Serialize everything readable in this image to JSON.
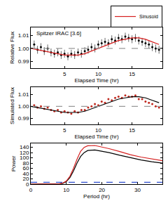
{
  "chart_data": [
    {
      "type": "scatter",
      "annotation": "Spitzer IRAC [3.6]",
      "x_label": "Elapsed Time (hr)",
      "y_label": "Relative Flux",
      "xlim": [
        0,
        19.5
      ],
      "xticks": [
        5,
        10,
        15
      ],
      "ylim": [
        0.985,
        1.016
      ],
      "yticks": [
        0.99,
        {
          "value": 1,
          "label": "1.00"
        },
        1.01
      ],
      "legend": "top right",
      "grid": false,
      "series": [
        {
          "type": "scatter",
          "color": "#000000",
          "marker": "circle",
          "x": [
            0.5,
            1,
            1.5,
            2,
            2.5,
            3,
            3.5,
            4,
            4.5,
            5,
            5.5,
            6,
            6.5,
            7,
            7.5,
            8,
            8.5,
            9,
            9.5,
            10,
            10.5,
            11,
            11.5,
            12,
            12.5,
            13,
            13.5,
            14,
            14.5,
            15,
            15.5,
            16,
            16.5,
            17,
            17.5,
            18,
            18.5,
            19
          ],
          "values": [
            1.003,
            0.999,
            1.001,
            0.998,
            1.0,
            0.997,
            0.996,
            0.997,
            0.995,
            0.996,
            0.994,
            0.996,
            0.995,
            0.997,
            0.996,
            0.998,
            0.999,
            1.001,
            1.0,
            1.003,
            1.004,
            1.005,
            1.004,
            1.007,
            1.006,
            1.008,
            1.007,
            1.009,
            1.008,
            1.007,
            1.008,
            1.006,
            1.005,
            1.004,
            1.003,
            1.001,
            1.0,
            0.999
          ],
          "error": [
            0.003,
            0.003,
            0.003,
            0.003,
            0.003,
            0.003,
            0.003,
            0.003,
            0.003,
            0.003,
            0.003,
            0.003,
            0.003,
            0.003,
            0.003,
            0.003,
            0.003,
            0.003,
            0.003,
            0.003,
            0.003,
            0.003,
            0.003,
            0.003,
            0.003,
            0.003,
            0.003,
            0.003,
            0.003,
            0.003,
            0.003,
            0.003,
            0.003,
            0.003,
            0.003,
            0.003,
            0.003,
            0.003
          ]
        },
        {
          "name": "Sinusoid",
          "type": "line",
          "color": "#d62020",
          "line_style": "solid",
          "x": [
            0,
            1,
            2,
            3,
            4,
            5,
            6,
            7,
            8,
            9,
            10,
            11,
            12,
            13,
            14,
            15,
            16,
            17,
            18,
            19
          ],
          "values": [
            1.0,
            0.999,
            0.998,
            0.997,
            0.996,
            0.995,
            0.995,
            0.995,
            0.996,
            0.998,
            1.0,
            1.002,
            1.004,
            1.006,
            1.007,
            1.008,
            1.008,
            1.007,
            1.005,
            1.003
          ]
        },
        {
          "type": "line",
          "color": "#999999",
          "line_style": "dashed",
          "x": [
            0,
            19.5
          ],
          "values": [
            1,
            1
          ]
        }
      ]
    },
    {
      "type": "scatter",
      "x_label": "Elapsed Time (hr)",
      "y_label": "Simulated Flux",
      "xlim": [
        0,
        19.5
      ],
      "xticks": [
        5,
        10,
        15
      ],
      "ylim": [
        0.985,
        1.016
      ],
      "yticks": [
        0.99,
        {
          "value": 1,
          "label": "1.00"
        },
        1.01
      ],
      "grid": false,
      "series": [
        {
          "type": "scatter",
          "color": "#c0281e",
          "marker": "circle",
          "x": [
            0.5,
            1,
            1.5,
            2,
            2.5,
            3,
            3.5,
            4,
            4.5,
            5,
            5.5,
            6,
            6.5,
            7,
            7.5,
            8,
            8.5,
            9,
            9.5,
            10,
            10.5,
            11,
            11.5,
            12,
            12.5,
            13,
            13.5,
            14,
            14.5,
            15,
            15.5,
            16,
            16.5,
            17,
            17.5,
            18,
            18.5,
            19
          ],
          "values": [
            1.001,
            0.999,
            1.0,
            0.998,
            0.999,
            0.997,
            0.996,
            0.997,
            0.995,
            0.996,
            0.995,
            0.994,
            0.996,
            0.995,
            0.997,
            0.997,
            0.999,
            1.0,
            1.002,
            1.001,
            1.004,
            1.003,
            1.006,
            1.005,
            1.007,
            1.008,
            1.007,
            1.009,
            1.008,
            1.008,
            1.009,
            1.006,
            1.006,
            1.004,
            1.003,
            1.002,
            1.0,
            0.999
          ]
        },
        {
          "type": "line",
          "color": "#000000",
          "line_style": "solid",
          "x": [
            0,
            1,
            2,
            3,
            4,
            5,
            6,
            7,
            8,
            9,
            10,
            11,
            12,
            13,
            14,
            15,
            16,
            17,
            18,
            19
          ],
          "values": [
            1.0,
            0.999,
            0.998,
            0.997,
            0.996,
            0.995,
            0.995,
            0.995,
            0.996,
            0.998,
            1.0,
            1.002,
            1.004,
            1.006,
            1.007,
            1.008,
            1.008,
            1.007,
            1.005,
            1.003
          ]
        },
        {
          "type": "line",
          "color": "#999999",
          "line_style": "dashed",
          "x": [
            0,
            19.5
          ],
          "values": [
            1,
            1
          ]
        }
      ]
    },
    {
      "type": "line",
      "x_label": "Period (hr)",
      "y_label": "Power",
      "xlim": [
        0,
        37
      ],
      "xticks": [
        0,
        10,
        20,
        30
      ],
      "ylim": [
        0,
        155
      ],
      "yticks": [
        0,
        20,
        40,
        60,
        80,
        100,
        120,
        140
      ],
      "grid": false,
      "series": [
        {
          "type": "line",
          "color": "#000000",
          "line_style": "solid",
          "x": [
            0,
            2,
            4,
            6,
            8,
            9,
            10,
            11,
            12,
            13,
            14,
            15,
            16,
            18,
            20,
            22,
            25,
            28,
            31,
            34,
            37
          ],
          "values": [
            0,
            0,
            0,
            0,
            1,
            3,
            10,
            25,
            50,
            80,
            105,
            120,
            128,
            130,
            126,
            120,
            110,
            100,
            92,
            85,
            80
          ]
        },
        {
          "type": "line",
          "color": "#d62020",
          "line_style": "solid",
          "x": [
            0,
            2,
            4,
            6,
            8,
            9,
            10,
            11,
            12,
            13,
            14,
            15,
            16,
            18,
            20,
            22,
            25,
            28,
            31,
            34,
            37
          ],
          "values": [
            0,
            0,
            0,
            0,
            1,
            4,
            12,
            30,
            60,
            95,
            125,
            140,
            146,
            147,
            142,
            135,
            124,
            112,
            103,
            95,
            89
          ]
        },
        {
          "type": "line",
          "color": "#3050d0",
          "line_style": "dashed",
          "x": [
            0,
            37
          ],
          "values": [
            7,
            7
          ]
        }
      ]
    }
  ]
}
